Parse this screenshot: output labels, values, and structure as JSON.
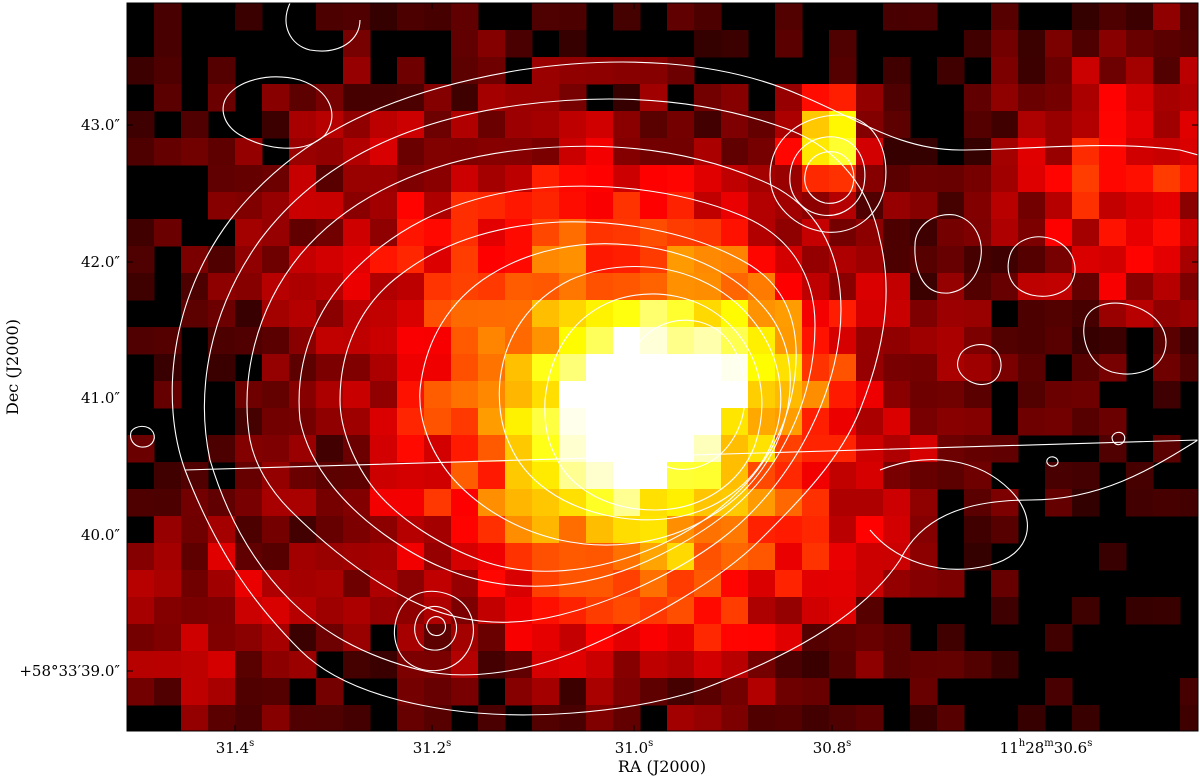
{
  "figure": {
    "colormap": "hot",
    "contour_color": "#ffffff",
    "background_color": "#000000",
    "frame_color": "#000000"
  },
  "axes": {
    "xlabel": "RA (J2000)",
    "ylabel": "Dec (J2000)",
    "x_ticks": [
      {
        "pre": "31.4",
        "sup": "s"
      },
      {
        "pre": "31.2",
        "sup": "s"
      },
      {
        "pre": "31.0",
        "sup": "s"
      },
      {
        "pre": "30.8",
        "sup": "s"
      },
      {
        "pre": "11",
        "sup": "h",
        "mid": "28",
        "sup2": "m",
        "post": "30.6",
        "sup3": "s"
      }
    ],
    "y_ticks": [
      {
        "text": "43.0″"
      },
      {
        "text": "42.0″"
      },
      {
        "text": "41.0″"
      },
      {
        "text": "40.0″"
      },
      {
        "text": "+58°33′39.0″"
      }
    ]
  }
}
